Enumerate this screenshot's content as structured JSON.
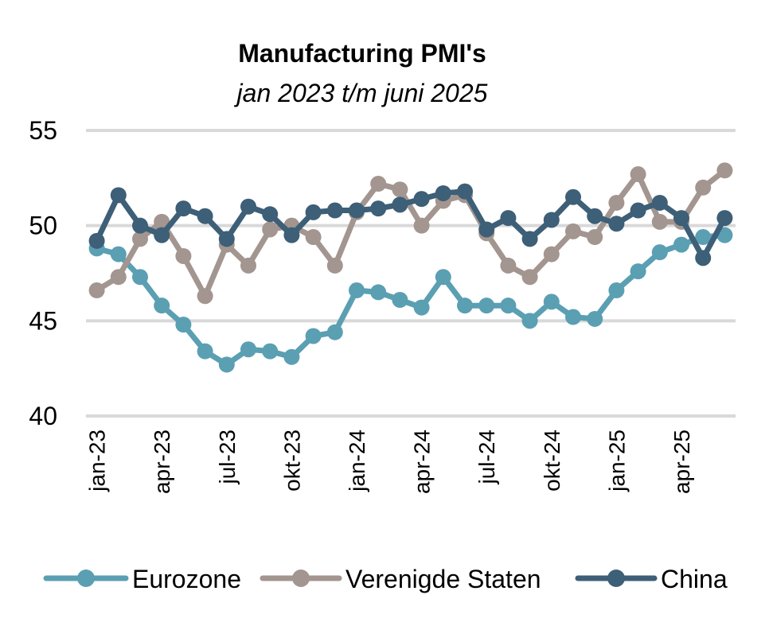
{
  "chart_data": {
    "type": "line",
    "title": "Manufacturing PMI's",
    "subtitle": "jan 2023 t/m juni 2025",
    "xlabel": "",
    "ylabel": "",
    "ylim": [
      40,
      55
    ],
    "yticks": [
      40,
      45,
      50,
      55
    ],
    "grid": true,
    "legend_position": "bottom",
    "x": [
      "jan-23",
      "feb-23",
      "mrt-23",
      "apr-23",
      "mei-23",
      "jun-23",
      "jul-23",
      "aug-23",
      "sep-23",
      "okt-23",
      "nov-23",
      "dec-23",
      "jan-24",
      "feb-24",
      "mrt-24",
      "apr-24",
      "mei-24",
      "jun-24",
      "jul-24",
      "aug-24",
      "sep-24",
      "okt-24",
      "nov-24",
      "dec-24",
      "jan-25",
      "feb-25",
      "mrt-25",
      "apr-25",
      "mei-25",
      "jun-25"
    ],
    "tick_labels": [
      "jan-23",
      "apr-23",
      "jul-23",
      "okt-23",
      "jan-24",
      "apr-24",
      "jul-24",
      "okt-24",
      "jan-25",
      "apr-25"
    ],
    "tick_indices": [
      0,
      3,
      6,
      9,
      12,
      15,
      18,
      21,
      24,
      27
    ],
    "series": [
      {
        "name": "Eurozone",
        "color": "#5b9fb3",
        "values": [
          48.8,
          48.5,
          47.3,
          45.8,
          44.8,
          43.4,
          42.7,
          43.5,
          43.4,
          43.1,
          44.2,
          44.4,
          46.6,
          46.5,
          46.1,
          45.7,
          47.3,
          45.8,
          45.8,
          45.8,
          45.0,
          46.0,
          45.2,
          45.1,
          46.6,
          47.6,
          48.6,
          49.0,
          49.4,
          49.5
        ]
      },
      {
        "name": "Verenigde Staten",
        "color": "#a3958f",
        "values": [
          46.6,
          47.3,
          49.3,
          50.2,
          48.4,
          46.3,
          49.0,
          47.9,
          49.8,
          50.0,
          49.4,
          47.9,
          50.7,
          52.2,
          51.9,
          50.0,
          51.3,
          51.6,
          49.6,
          47.9,
          47.3,
          48.5,
          49.7,
          49.4,
          51.2,
          52.7,
          50.2,
          50.2,
          52.0,
          52.9
        ]
      },
      {
        "name": "China",
        "color": "#3d5f77",
        "values": [
          49.2,
          51.6,
          50.0,
          49.5,
          50.9,
          50.5,
          49.3,
          51.0,
          50.6,
          49.5,
          50.7,
          50.8,
          50.8,
          50.9,
          51.1,
          51.4,
          51.7,
          51.8,
          49.8,
          50.4,
          49.3,
          50.3,
          51.5,
          50.5,
          50.1,
          50.8,
          51.2,
          50.4,
          48.3,
          50.4
        ]
      }
    ]
  }
}
